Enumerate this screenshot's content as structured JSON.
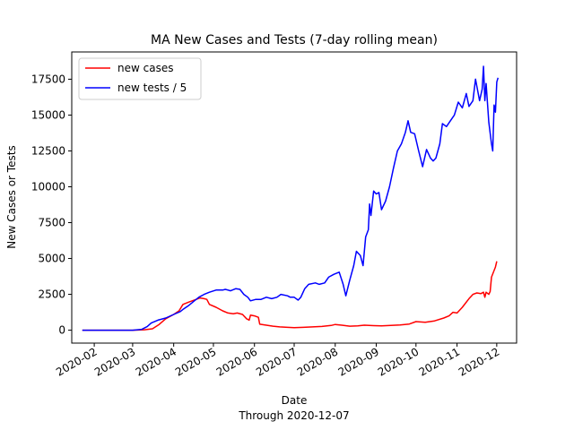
{
  "chart_data": {
    "type": "line",
    "title": "MA New Cases and Tests (7-day rolling mean)",
    "xlabel": "Date",
    "xlabel_sub": "Through 2020-12-07",
    "ylabel": "New Cases or Tests",
    "xlim": [
      "2020-01-15",
      "2020-12-16"
    ],
    "ylim": [
      -900,
      19400
    ],
    "x_ticks": [
      "2020-02-01",
      "2020-03-01",
      "2020-04-01",
      "2020-05-01",
      "2020-06-01",
      "2020-07-01",
      "2020-08-01",
      "2020-09-01",
      "2020-10-01",
      "2020-11-01",
      "2020-12-01"
    ],
    "x_tick_labels": [
      "2020-02",
      "2020-03",
      "2020-04",
      "2020-05",
      "2020-06",
      "2020-07",
      "2020-08",
      "2020-09",
      "2020-10",
      "2020-11",
      "2020-12"
    ],
    "y_ticks": [
      0,
      2500,
      5000,
      7500,
      10000,
      12500,
      15000,
      17500
    ],
    "y_tick_labels": [
      "0",
      "2500",
      "5000",
      "7500",
      "10000",
      "12500",
      "15000",
      "17500"
    ],
    "grid": false,
    "legend_position": "top-left",
    "series": [
      {
        "name": "new cases",
        "color": "#ff0000",
        "points": [
          [
            "2020-01-23",
            0
          ],
          [
            "2020-03-01",
            0
          ],
          [
            "2020-03-10",
            30
          ],
          [
            "2020-03-16",
            100
          ],
          [
            "2020-03-21",
            400
          ],
          [
            "2020-03-26",
            800
          ],
          [
            "2020-04-01",
            1100
          ],
          [
            "2020-04-05",
            1350
          ],
          [
            "2020-04-08",
            1800
          ],
          [
            "2020-04-12",
            1950
          ],
          [
            "2020-04-15",
            2050
          ],
          [
            "2020-04-18",
            2150
          ],
          [
            "2020-04-21",
            2250
          ],
          [
            "2020-04-24",
            2200
          ],
          [
            "2020-04-26",
            2150
          ],
          [
            "2020-04-28",
            1800
          ],
          [
            "2020-05-03",
            1600
          ],
          [
            "2020-05-08",
            1350
          ],
          [
            "2020-05-12",
            1200
          ],
          [
            "2020-05-16",
            1150
          ],
          [
            "2020-05-19",
            1200
          ],
          [
            "2020-05-23",
            1100
          ],
          [
            "2020-05-26",
            800
          ],
          [
            "2020-05-28",
            700
          ],
          [
            "2020-05-29",
            1050
          ],
          [
            "2020-06-01",
            1000
          ],
          [
            "2020-06-04",
            900
          ],
          [
            "2020-06-05",
            420
          ],
          [
            "2020-06-10",
            350
          ],
          [
            "2020-06-15",
            280
          ],
          [
            "2020-06-20",
            230
          ],
          [
            "2020-06-26",
            200
          ],
          [
            "2020-07-01",
            180
          ],
          [
            "2020-07-08",
            200
          ],
          [
            "2020-07-15",
            230
          ],
          [
            "2020-07-22",
            260
          ],
          [
            "2020-07-29",
            330
          ],
          [
            "2020-08-01",
            400
          ],
          [
            "2020-08-06",
            350
          ],
          [
            "2020-08-12",
            280
          ],
          [
            "2020-08-18",
            300
          ],
          [
            "2020-08-23",
            350
          ],
          [
            "2020-08-30",
            320
          ],
          [
            "2020-09-05",
            300
          ],
          [
            "2020-09-12",
            330
          ],
          [
            "2020-09-19",
            370
          ],
          [
            "2020-09-26",
            430
          ],
          [
            "2020-10-01",
            600
          ],
          [
            "2020-10-08",
            550
          ],
          [
            "2020-10-15",
            650
          ],
          [
            "2020-10-22",
            850
          ],
          [
            "2020-10-26",
            1000
          ],
          [
            "2020-10-29",
            1250
          ],
          [
            "2020-11-01",
            1200
          ],
          [
            "2020-11-05",
            1600
          ],
          [
            "2020-11-10",
            2200
          ],
          [
            "2020-11-13",
            2500
          ],
          [
            "2020-11-16",
            2600
          ],
          [
            "2020-11-19",
            2550
          ],
          [
            "2020-11-21",
            2650
          ],
          [
            "2020-11-22",
            2300
          ],
          [
            "2020-11-23",
            2650
          ],
          [
            "2020-11-25",
            2500
          ],
          [
            "2020-11-26",
            2700
          ],
          [
            "2020-11-27",
            3700
          ],
          [
            "2020-11-30",
            4400
          ],
          [
            "2020-12-01",
            4800
          ]
        ]
      },
      {
        "name": "new tests / 5",
        "color": "#0000ff",
        "points": [
          [
            "2020-01-23",
            0
          ],
          [
            "2020-03-01",
            0
          ],
          [
            "2020-03-08",
            60
          ],
          [
            "2020-03-12",
            250
          ],
          [
            "2020-03-15",
            500
          ],
          [
            "2020-03-20",
            700
          ],
          [
            "2020-03-26",
            850
          ],
          [
            "2020-04-01",
            1100
          ],
          [
            "2020-04-06",
            1300
          ],
          [
            "2020-04-08",
            1450
          ],
          [
            "2020-04-12",
            1700
          ],
          [
            "2020-04-16",
            2000
          ],
          [
            "2020-04-20",
            2300
          ],
          [
            "2020-04-24",
            2500
          ],
          [
            "2020-04-28",
            2650
          ],
          [
            "2020-05-03",
            2800
          ],
          [
            "2020-05-08",
            2800
          ],
          [
            "2020-05-10",
            2850
          ],
          [
            "2020-05-14",
            2750
          ],
          [
            "2020-05-18",
            2900
          ],
          [
            "2020-05-21",
            2850
          ],
          [
            "2020-05-24",
            2500
          ],
          [
            "2020-05-27",
            2300
          ],
          [
            "2020-05-29",
            2050
          ],
          [
            "2020-06-02",
            2150
          ],
          [
            "2020-06-06",
            2150
          ],
          [
            "2020-06-10",
            2300
          ],
          [
            "2020-06-14",
            2200
          ],
          [
            "2020-06-18",
            2300
          ],
          [
            "2020-06-21",
            2500
          ],
          [
            "2020-06-26",
            2400
          ],
          [
            "2020-06-28",
            2300
          ],
          [
            "2020-07-01",
            2300
          ],
          [
            "2020-07-04",
            2100
          ],
          [
            "2020-07-06",
            2300
          ],
          [
            "2020-07-09",
            2900
          ],
          [
            "2020-07-12",
            3200
          ],
          [
            "2020-07-17",
            3300
          ],
          [
            "2020-07-20",
            3200
          ],
          [
            "2020-07-24",
            3300
          ],
          [
            "2020-07-27",
            3700
          ],
          [
            "2020-07-31",
            3900
          ],
          [
            "2020-08-04",
            4050
          ],
          [
            "2020-08-07",
            3200
          ],
          [
            "2020-08-09",
            2400
          ],
          [
            "2020-08-12",
            3500
          ],
          [
            "2020-08-15",
            4500
          ],
          [
            "2020-08-17",
            5500
          ],
          [
            "2020-08-20",
            5200
          ],
          [
            "2020-08-22",
            4500
          ],
          [
            "2020-08-24",
            6500
          ],
          [
            "2020-08-26",
            7000
          ],
          [
            "2020-08-27",
            8800
          ],
          [
            "2020-08-28",
            8000
          ],
          [
            "2020-08-30",
            9700
          ],
          [
            "2020-09-01",
            9500
          ],
          [
            "2020-09-03",
            9600
          ],
          [
            "2020-09-05",
            8400
          ],
          [
            "2020-09-08",
            9000
          ],
          [
            "2020-09-11",
            10000
          ],
          [
            "2020-09-14",
            11300
          ],
          [
            "2020-09-17",
            12500
          ],
          [
            "2020-09-20",
            13000
          ],
          [
            "2020-09-23",
            13800
          ],
          [
            "2020-09-25",
            14600
          ],
          [
            "2020-09-27",
            13800
          ],
          [
            "2020-09-30",
            13700
          ],
          [
            "2020-10-03",
            12500
          ],
          [
            "2020-10-06",
            11400
          ],
          [
            "2020-10-09",
            12600
          ],
          [
            "2020-10-12",
            12000
          ],
          [
            "2020-10-14",
            11800
          ],
          [
            "2020-10-16",
            12000
          ],
          [
            "2020-10-19",
            13000
          ],
          [
            "2020-10-21",
            14400
          ],
          [
            "2020-10-24",
            14200
          ],
          [
            "2020-10-27",
            14600
          ],
          [
            "2020-10-30",
            15000
          ],
          [
            "2020-11-02",
            15900
          ],
          [
            "2020-11-05",
            15500
          ],
          [
            "2020-11-08",
            16500
          ],
          [
            "2020-11-10",
            15600
          ],
          [
            "2020-11-13",
            16000
          ],
          [
            "2020-11-15",
            17500
          ],
          [
            "2020-11-18",
            16000
          ],
          [
            "2020-11-20",
            16800
          ],
          [
            "2020-11-21",
            18400
          ],
          [
            "2020-11-22",
            16000
          ],
          [
            "2020-11-23",
            17200
          ],
          [
            "2020-11-25",
            14500
          ],
          [
            "2020-11-27",
            13000
          ],
          [
            "2020-11-28",
            12500
          ],
          [
            "2020-11-29",
            15700
          ],
          [
            "2020-11-30",
            15200
          ],
          [
            "2020-12-01",
            17300
          ],
          [
            "2020-12-02",
            17600
          ]
        ]
      }
    ]
  }
}
